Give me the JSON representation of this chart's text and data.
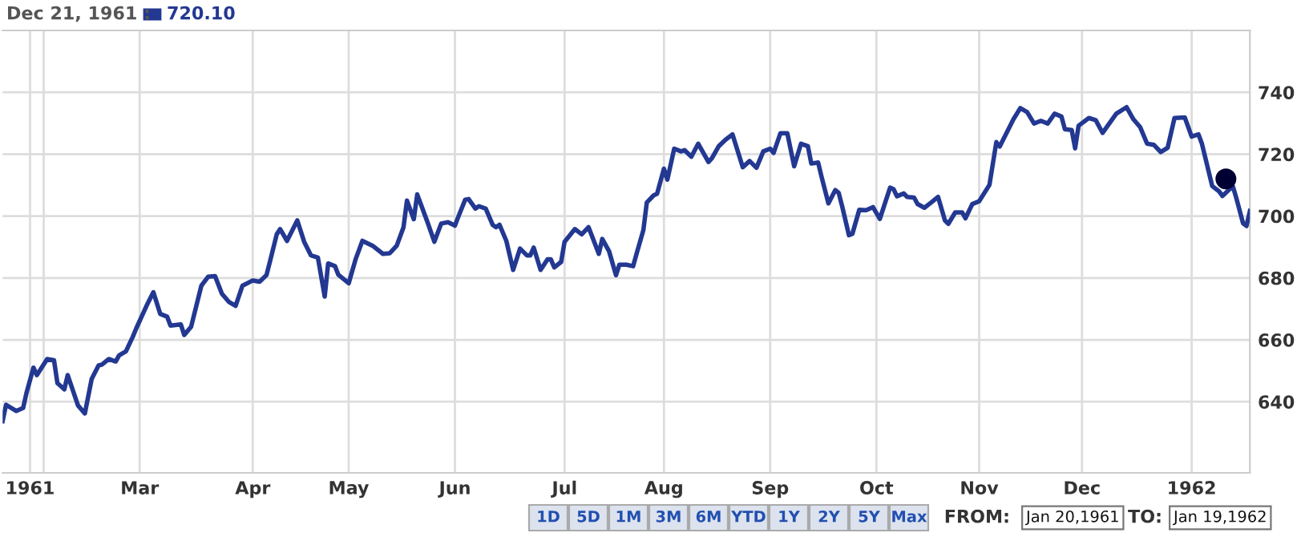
{
  "chart_data": {
    "type": "line",
    "annotations": [
      "Dec 21, 1961 :",
      "720.10",
      "1D",
      "5D",
      "1M",
      "3M",
      "6M",
      "YTD",
      "1Y",
      "2Y",
      "5Y",
      "Max",
      "FROM:",
      "Jan 20,1961",
      "TO:",
      "Jan 19,1962"
    ],
    "x": [
      "1961-01-20",
      "1961-01-21",
      "1961-01-24",
      "1961-01-26",
      "1961-01-27",
      "1961-01-29",
      "1961-01-30",
      "1961-02-02",
      "1961-02-04",
      "1961-02-05",
      "1961-02-07",
      "1961-02-08",
      "1961-02-11",
      "1961-02-13",
      "1961-02-15",
      "1961-02-17",
      "1961-02-18",
      "1961-02-20",
      "1961-02-22",
      "1961-02-23",
      "1961-02-25",
      "1961-02-27",
      "1961-02-28",
      "1961-03-03",
      "1961-03-05",
      "1961-03-07",
      "1961-03-09",
      "1961-03-10",
      "1961-03-13",
      "1961-03-14",
      "1961-03-16",
      "1961-03-19",
      "1961-03-21",
      "1961-03-23",
      "1961-03-25",
      "1961-03-27",
      "1961-03-29",
      "1961-03-31",
      "1961-04-03",
      "1961-04-05",
      "1961-04-07",
      "1961-04-08",
      "1961-04-10",
      "1961-04-11",
      "1961-04-13",
      "1961-04-16",
      "1961-04-18",
      "1961-04-20",
      "1961-04-22",
      "1961-04-24",
      "1961-04-25",
      "1961-04-27",
      "1961-04-28",
      "1961-05-01",
      "1961-05-03",
      "1961-05-05",
      "1961-05-08",
      "1961-05-11",
      "1961-05-13",
      "1961-05-15",
      "1961-05-17",
      "1961-05-18",
      "1961-05-20",
      "1961-05-21",
      "1961-05-23",
      "1961-05-24",
      "1961-05-26",
      "1961-05-28",
      "1961-05-30",
      "1961-06-01",
      "1961-06-02",
      "1961-06-04",
      "1961-06-05",
      "1961-06-07",
      "1961-06-08",
      "1961-06-10",
      "1961-06-12",
      "1961-06-13",
      "1961-06-14",
      "1961-06-16",
      "1961-06-18",
      "1961-06-20",
      "1961-06-22",
      "1961-06-23",
      "1961-06-24",
      "1961-06-26",
      "1961-06-28",
      "1961-06-29",
      "1961-06-30",
      "1961-07-02",
      "1961-07-03",
      "1961-07-06",
      "1961-07-08",
      "1961-07-10",
      "1961-07-13",
      "1961-07-14",
      "1961-07-16",
      "1961-07-18",
      "1961-07-19",
      "1961-07-21",
      "1961-07-23",
      "1961-07-24",
      "1961-07-26",
      "1961-07-27",
      "1961-07-29",
      "1961-07-30",
      "1961-08-01",
      "1961-08-02",
      "1961-08-04",
      "1961-08-06",
      "1961-08-07",
      "1961-08-09",
      "1961-08-11",
      "1961-08-14",
      "1961-08-15",
      "1961-08-17",
      "1961-08-19",
      "1961-08-21",
      "1961-08-24",
      "1961-08-26",
      "1961-08-28",
      "1961-08-30",
      "1961-09-01",
      "1961-09-02",
      "1961-09-04",
      "1961-09-06",
      "1961-09-08",
      "1961-09-10",
      "1961-09-12",
      "1961-09-13",
      "1961-09-15",
      "1961-09-16",
      "1961-09-18",
      "1961-09-20",
      "1961-09-21",
      "1961-09-22",
      "1961-09-24",
      "1961-09-25",
      "1961-09-27",
      "1961-09-29",
      "1961-10-01",
      "1961-10-03",
      "1961-10-06",
      "1961-10-07",
      "1961-10-08",
      "1961-10-10",
      "1961-10-11",
      "1961-10-13",
      "1961-10-14",
      "1961-10-16",
      "1961-10-18",
      "1961-10-20",
      "1961-10-22",
      "1961-10-23",
      "1961-10-25",
      "1961-10-27",
      "1961-10-28",
      "1961-10-30",
      "1961-11-01",
      "1961-11-04",
      "1961-11-06",
      "1961-11-07",
      "1961-11-11",
      "1961-11-13",
      "1961-11-15",
      "1961-11-17",
      "1961-11-19",
      "1961-11-21",
      "1961-11-23",
      "1961-11-25",
      "1961-11-26",
      "1961-11-28",
      "1961-11-29",
      "1961-11-30",
      "1961-12-03",
      "1961-12-05",
      "1961-12-07",
      "1961-12-11",
      "1961-12-14",
      "1961-12-16",
      "1961-12-18",
      "1961-12-20",
      "1961-12-22",
      "1961-12-24",
      "1961-12-26",
      "1961-12-28",
      "1961-12-31",
      "1962-01-02",
      "1962-01-04",
      "1962-01-05",
      "1962-01-08",
      "1962-01-10",
      "1962-01-11",
      "1962-01-14",
      "1962-01-15",
      "1962-01-17",
      "1962-01-18",
      "1962-01-19"
    ],
    "series": [
      {
        "color": "#233891",
        "values": [
          633.7,
          639,
          637,
          638,
          643,
          651,
          648.6,
          653.8,
          653.4,
          646,
          644,
          648.6,
          638.8,
          636.2,
          647.4,
          651.7,
          652,
          653.8,
          653,
          655,
          656.3,
          661,
          663.7,
          671,
          675.4,
          668.4,
          667.5,
          664.6,
          665,
          661.6,
          664.2,
          677.5,
          680.4,
          680.6,
          674.9,
          672.3,
          671,
          677.5,
          679.2,
          678.8,
          680.9,
          685.2,
          694.1,
          695.8,
          692,
          698.6,
          691.7,
          687.3,
          686.6,
          674,
          684.7,
          683.8,
          681,
          678.3,
          686,
          692,
          690.4,
          687.8,
          688,
          690.4,
          696.4,
          705,
          699,
          707,
          701,
          698,
          691.7,
          697.6,
          698,
          696.9,
          699.8,
          705.3,
          705.5,
          702.4,
          703.2,
          702.4,
          697.2,
          696.4,
          697.2,
          692,
          682.6,
          689.5,
          687.3,
          687.3,
          689.8,
          682.6,
          686,
          686,
          683.4,
          685.2,
          691.7,
          695.8,
          694.1,
          696.4,
          687.8,
          692.6,
          688.6,
          680.9,
          684.3,
          684.3,
          683.8,
          687.8,
          695.5,
          704.4,
          706.7,
          707.2,
          715.3,
          711.8,
          721.8,
          720.9,
          721.3,
          719.2,
          723.4,
          717.5,
          718.7,
          722.6,
          724.7,
          726.4,
          715.8,
          717.8,
          715.6,
          720.9,
          721.8,
          720.4,
          726.8,
          726.8,
          716.1,
          723.4,
          722.6,
          717,
          717.3,
          712.7,
          704.1,
          708.4,
          707.5,
          703.2,
          693.8,
          694.3,
          702,
          701.9,
          702.9,
          699.1,
          709.2,
          708.7,
          706.4,
          707.3,
          706.2,
          706,
          703.9,
          702.7,
          704.4,
          706.2,
          698.6,
          697.5,
          701.2,
          701.2,
          699.3,
          703.9,
          704.8,
          710.1,
          723.9,
          722.5,
          731.3,
          734.9,
          733.6,
          729.9,
          730.8,
          729.9,
          733.1,
          732.2,
          728.1,
          727.8,
          721.9,
          729.2,
          731.7,
          731,
          726.9,
          733.1,
          735.2,
          731.3,
          728.7,
          723.4,
          723,
          720.7,
          722.1,
          731.7,
          731.9,
          725.7,
          726.4,
          723.4,
          709.7,
          708,
          706.5,
          709.7,
          706,
          697.7,
          696.8,
          701.6
        ]
      },
      {
        "type": "scatter",
        "color": "#000033",
        "marker": "circle",
        "x": [
          "1962-01-12"
        ],
        "values": [
          712
        ]
      }
    ],
    "xlim": [
      "1961-01-20",
      "1962-01-19"
    ],
    "xticks": [
      {
        "value": "1961-01-28",
        "label": "1961"
      },
      {
        "value": "1961-02-01",
        "label": null
      },
      {
        "value": "1961-03-01",
        "label": "Mar"
      },
      {
        "value": "1961-04-03",
        "label": "Apr"
      },
      {
        "value": "1961-05-01",
        "label": "May"
      },
      {
        "value": "1961-06-01",
        "label": "Jun"
      },
      {
        "value": "1961-07-03",
        "label": "Jul"
      },
      {
        "value": "1961-08-01",
        "label": "Aug"
      },
      {
        "value": "1961-09-01",
        "label": "Sep"
      },
      {
        "value": "1961-10-02",
        "label": "Oct"
      },
      {
        "value": "1961-11-01",
        "label": "Nov"
      },
      {
        "value": "1961-12-01",
        "label": "Dec"
      },
      {
        "value": "1962-01-02",
        "label": "1962"
      }
    ],
    "ylim": [
      617,
      760
    ],
    "yticks": [
      640,
      660,
      680,
      700,
      720,
      740
    ],
    "grid": true,
    "marker": "none",
    "line_style": "solid"
  }
}
